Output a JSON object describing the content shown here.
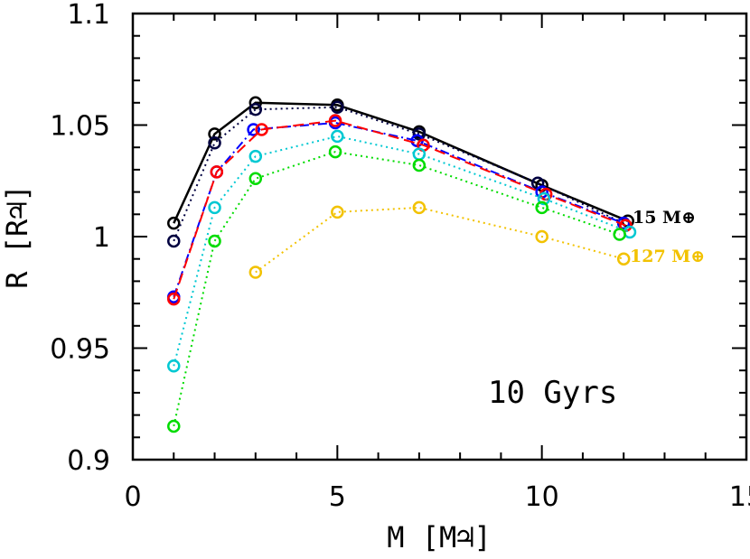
{
  "chart_data": {
    "type": "line",
    "xlabel": "M [M♃]",
    "ylabel": "R [R♃]",
    "xlim": [
      0,
      15
    ],
    "ylim": [
      0.9,
      1.1
    ],
    "x_ticks": [
      "0",
      "5",
      "10",
      "15"
    ],
    "y_ticks": [
      "0.9",
      "0.95",
      "1",
      "1.05",
      "1.1"
    ],
    "annotation": "10 Gyrs",
    "grid": false,
    "legend_labels": [
      {
        "text": "15 M⊕",
        "color": "#000000"
      },
      {
        "text": "127 M⊕",
        "color": "#f2c200"
      }
    ],
    "series": [
      {
        "color": "#000000",
        "style": "solid",
        "x": [
          1,
          2,
          3,
          5,
          7,
          10,
          12.1
        ],
        "y": [
          1.006,
          1.046,
          1.06,
          1.059,
          1.047,
          1.023,
          1.007
        ]
      },
      {
        "color": "#000040",
        "style": "dotted",
        "x": [
          1,
          2,
          3,
          5,
          7,
          9.9,
          12.0
        ],
        "y": [
          0.998,
          1.042,
          1.057,
          1.058,
          1.046,
          1.024,
          1.006
        ]
      },
      {
        "color": "#0000ff",
        "style": "dashdot",
        "x": [
          1,
          2.05,
          2.95,
          4.95,
          6.95,
          10.0,
          12.0
        ],
        "y": [
          0.973,
          1.029,
          1.048,
          1.051,
          1.043,
          1.02,
          1.006
        ]
      },
      {
        "color": "#ff0000",
        "style": "dashed",
        "x": [
          1,
          2.05,
          3.15,
          4.95,
          7.1,
          10.1,
          12.05
        ],
        "y": [
          0.972,
          1.029,
          1.048,
          1.052,
          1.041,
          1.019,
          1.005
        ]
      },
      {
        "color": "#00c8d2",
        "style": "dotted",
        "x": [
          1,
          2,
          3,
          5,
          7,
          10.05,
          12.15
        ],
        "y": [
          0.942,
          1.013,
          1.036,
          1.045,
          1.037,
          1.017,
          1.002
        ]
      },
      {
        "color": "#00dc00",
        "style": "dotted",
        "x": [
          1,
          2,
          3,
          4.95,
          7,
          10,
          11.9
        ],
        "y": [
          0.915,
          0.998,
          1.026,
          1.038,
          1.032,
          1.013,
          1.001
        ]
      },
      {
        "color": "#f2c200",
        "style": "dotted",
        "x": [
          3,
          5,
          7,
          10,
          12
        ],
        "y": [
          0.984,
          1.011,
          1.013,
          1.0,
          0.99
        ]
      }
    ]
  }
}
